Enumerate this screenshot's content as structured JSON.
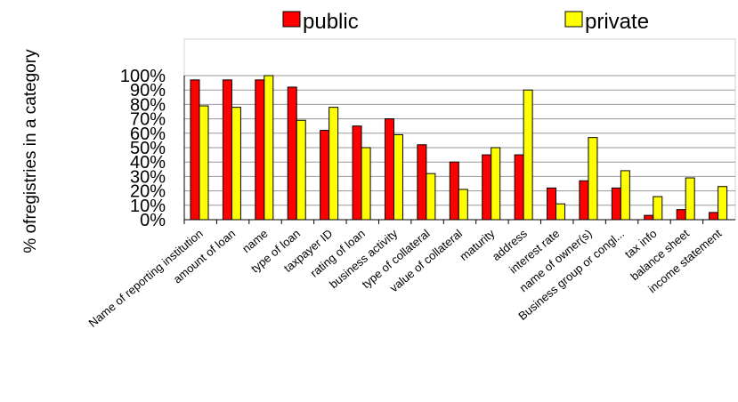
{
  "chart_data": {
    "type": "bar",
    "ylabel": "% ofregistries in a category",
    "ylim": [
      0,
      100
    ],
    "yticks": [
      "0%",
      "10%",
      "20%",
      "30%",
      "40%",
      "50%",
      "60%",
      "70%",
      "80%",
      "90%",
      "100%"
    ],
    "grid": true,
    "legend_position": "top",
    "categories": [
      "Name of reporting institution",
      "amount of loan",
      "name",
      "type of loan",
      "taxpayer ID",
      "rating of loan",
      "business activity",
      "type of collateral",
      "value of collateral",
      "maturity",
      "address",
      "interest rate",
      "name of owner(s)",
      "Business group or congl...",
      "tax info",
      "balance sheet",
      "income statement"
    ],
    "series": [
      {
        "name": "public",
        "color": "#ff0000",
        "values": [
          97,
          97,
          97,
          92,
          62,
          65,
          70,
          52,
          40,
          45,
          45,
          22,
          27,
          22,
          3,
          7,
          5
        ]
      },
      {
        "name": "private",
        "color": "#ffff00",
        "values": [
          79,
          78,
          100,
          69,
          78,
          50,
          59,
          32,
          21,
          50,
          90,
          11,
          57,
          34,
          16,
          29,
          23
        ]
      }
    ]
  }
}
